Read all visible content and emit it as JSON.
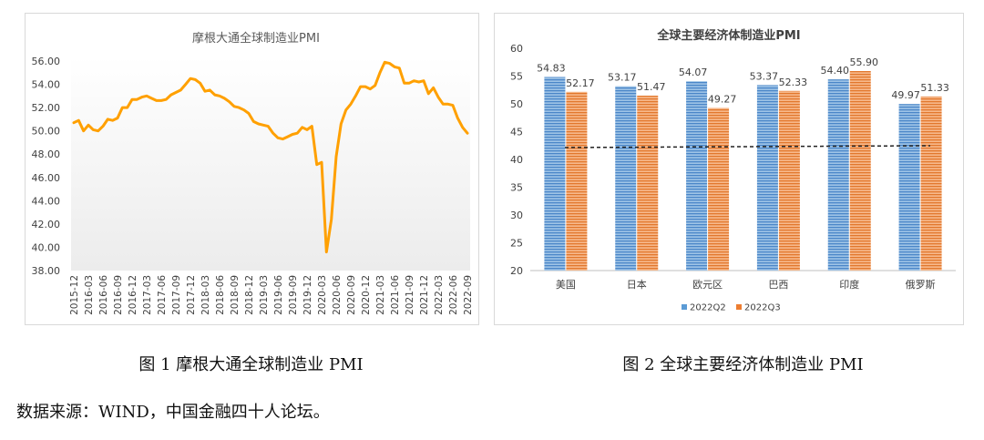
{
  "chart_data": [
    {
      "type": "line",
      "title": "摩根大通全球制造业PMI",
      "color": "#FFA000",
      "ylim": [
        38,
        56
      ],
      "yticks": [
        "38.00",
        "40.00",
        "42.00",
        "44.00",
        "46.00",
        "48.00",
        "50.00",
        "52.00",
        "54.00",
        "56.00"
      ],
      "xticks": [
        "2015-12",
        "2016-03",
        "2016-06",
        "2016-09",
        "2016-12",
        "2017-03",
        "2017-06",
        "2017-09",
        "2017-12",
        "2018-03",
        "2018-06",
        "2018-09",
        "2018-12",
        "2019-03",
        "2019-06",
        "2019-09",
        "2019-12",
        "2020-03",
        "2020-06",
        "2020-09",
        "2020-12",
        "2021-03",
        "2021-06",
        "2021-09",
        "2021-12",
        "2022-03",
        "2022-06",
        "2022-09"
      ],
      "x": [
        "2015-12",
        "2016-01",
        "2016-02",
        "2016-03",
        "2016-04",
        "2016-05",
        "2016-06",
        "2016-07",
        "2016-08",
        "2016-09",
        "2016-10",
        "2016-11",
        "2016-12",
        "2017-01",
        "2017-02",
        "2017-03",
        "2017-04",
        "2017-05",
        "2017-06",
        "2017-07",
        "2017-08",
        "2017-09",
        "2017-10",
        "2017-11",
        "2017-12",
        "2018-01",
        "2018-02",
        "2018-03",
        "2018-04",
        "2018-05",
        "2018-06",
        "2018-07",
        "2018-08",
        "2018-09",
        "2018-10",
        "2018-11",
        "2018-12",
        "2019-01",
        "2019-02",
        "2019-03",
        "2019-04",
        "2019-05",
        "2019-06",
        "2019-07",
        "2019-08",
        "2019-09",
        "2019-10",
        "2019-11",
        "2019-12",
        "2020-01",
        "2020-02",
        "2020-03",
        "2020-04",
        "2020-05",
        "2020-06",
        "2020-07",
        "2020-08",
        "2020-09",
        "2020-10",
        "2020-11",
        "2020-12",
        "2021-01",
        "2021-02",
        "2021-03",
        "2021-04",
        "2021-05",
        "2021-06",
        "2021-07",
        "2021-08",
        "2021-09",
        "2021-10",
        "2021-11",
        "2021-12",
        "2022-01",
        "2022-02",
        "2022-03",
        "2022-04",
        "2022-05",
        "2022-06",
        "2022-07",
        "2022-08",
        "2022-09"
      ],
      "values": [
        50.7,
        50.9,
        50.0,
        50.5,
        50.1,
        50.0,
        50.4,
        51.0,
        50.9,
        51.1,
        52.0,
        52.0,
        52.7,
        52.7,
        52.9,
        53.0,
        52.8,
        52.6,
        52.6,
        52.7,
        53.1,
        53.3,
        53.5,
        54.0,
        54.5,
        54.4,
        54.1,
        53.4,
        53.5,
        53.1,
        53.0,
        52.8,
        52.5,
        52.1,
        52.0,
        51.8,
        51.5,
        50.8,
        50.6,
        50.5,
        50.4,
        49.8,
        49.4,
        49.3,
        49.5,
        49.7,
        49.8,
        50.3,
        50.1,
        50.4,
        47.1,
        47.3,
        39.6,
        42.4,
        47.8,
        50.6,
        51.8,
        52.3,
        53.0,
        53.8,
        53.8,
        53.6,
        53.9,
        55.0,
        55.9,
        55.8,
        55.5,
        55.4,
        54.1,
        54.1,
        54.3,
        54.2,
        54.3,
        53.2,
        53.7,
        52.9,
        52.3,
        52.3,
        52.2,
        51.1,
        50.3,
        49.8
      ]
    },
    {
      "type": "bar",
      "title": "全球主要经济体制造业PMI",
      "categories": [
        "美国",
        "日本",
        "欧元区",
        "巴西",
        "印度",
        "俄罗斯"
      ],
      "series": [
        {
          "name": "2022Q2",
          "values": [
            54.83,
            53.17,
            54.07,
            53.37,
            54.4,
            49.97
          ],
          "labels": [
            "54.83",
            "53.17",
            "54.07",
            "53.37",
            "54.40",
            "49.97"
          ],
          "color": "#5B9BD5"
        },
        {
          "name": "2022Q3",
          "values": [
            52.17,
            51.47,
            49.27,
            52.33,
            55.9,
            51.33
          ],
          "labels": [
            "52.17",
            "51.47",
            "49.27",
            "52.33",
            "55.90",
            "51.33"
          ],
          "color": "#ED7D31"
        }
      ],
      "ylim": [
        20,
        60
      ],
      "yticks": [
        "20",
        "25",
        "30",
        "35",
        "40",
        "45",
        "50",
        "55",
        "60"
      ],
      "reference_line": 42.3,
      "legend": "bottom"
    }
  ],
  "captions": {
    "fig1": "图 1  摩根大通全球制造业 PMI",
    "fig2": "图 2  全球主要经济体制造业 PMI"
  },
  "source": "数据来源：WIND，中国金融四十人论坛。"
}
